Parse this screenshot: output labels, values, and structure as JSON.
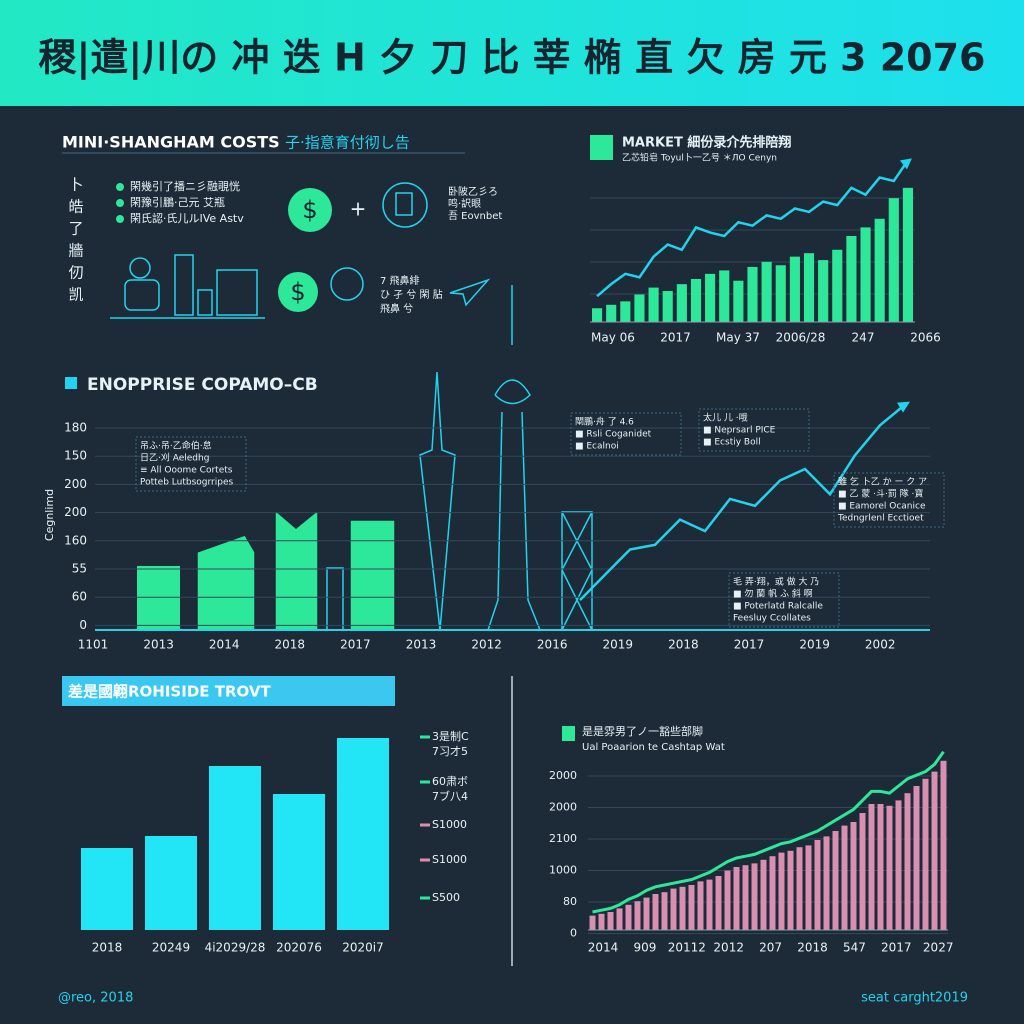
{
  "header": {
    "title": "稷|遣|川の 冲 迭 H 夕 刀 比 莘 椭 直 欠 房 元 3 2076"
  },
  "costs": {
    "heading": "MINI·SHANGHAM COSTS",
    "subtitle": "子·指意育付彻し告",
    "side": [
      "卜",
      "皓",
      "了",
      "牆",
      "仞",
      "凯"
    ],
    "bullets": [
      "閑幾引了播ニ彡融覗恍",
      "閑豫引鵬·己元 艾瓶",
      "閑氏認·氏儿ルIVe Astv"
    ],
    "icons": [
      "$",
      "$"
    ],
    "plus": "+",
    "note_a": [
      "卧陂乙彡ろ",
      "鸣·訳眼",
      "吾 Eovnbet"
    ],
    "note_b": [
      "7 飛鼻緋",
      "ひ 孑 兮 閑 胋",
      "飛鼻 兮"
    ]
  },
  "market": {
    "heading": "MARKET 細份录介先排陪翔",
    "subtitle": "乙芯铅皂 Toyul卜一乙号 ＊ЛO Cenyn",
    "x_labels": [
      "May 06",
      "2017",
      "May 37",
      "2006/28",
      "247",
      "2066"
    ],
    "bars": [
      8,
      10,
      12,
      16,
      20,
      18,
      22,
      25,
      28,
      30,
      24,
      32,
      35,
      33,
      38,
      40,
      36,
      42,
      50,
      55,
      60,
      72,
      78
    ],
    "line": [
      15,
      22,
      28,
      26,
      38,
      45,
      42,
      55,
      52,
      50,
      58,
      56,
      62,
      60,
      66,
      64,
      70,
      68,
      78,
      74,
      84,
      82,
      94
    ],
    "ylim": [
      0,
      100
    ],
    "bar_color": "#2ee89a",
    "line_color": "#22d3ee"
  },
  "enterprise": {
    "heading": "ENOPPRISE COPAMO–CB",
    "axis_label": "Cegnlimd",
    "y_labels": [
      "180",
      "150",
      "200",
      "200",
      "160",
      "55",
      "60",
      "0"
    ],
    "x_labels": [
      "1101",
      "2013",
      "2014",
      "2018",
      "2017",
      "2013",
      "2012",
      "2016",
      "2019",
      "2018",
      "2017",
      "2019",
      "2002"
    ],
    "trend": [
      13,
      24,
      35,
      37,
      48,
      43,
      57,
      54,
      65,
      70,
      59,
      76,
      89,
      98
    ],
    "ylim": [
      0,
      100
    ],
    "line_color": "#22d3ee",
    "annotations": [
      [
        "吊ふ·吊·乙命伯·怠",
        "日乙·刈 Aeledhg",
        "≡ All Ooome Cortets",
        "Potteb Lutbsogrripes"
      ],
      [
        "閘鵬·舟 了 4.6",
        "■ Rsli Coganidet",
        "■ Ecalnoi"
      ],
      [
        "太儿 儿 ·哦",
        "■ Neprsarl PICE",
        "■ Ecstiy Boll"
      ],
      [
        "雖 乞 卜乙 か ー ク ア",
        "■ 乙 蒙 ·斗·罰 隊 ·寶",
        "■ Eamorel Ocanice",
        "Tedngrlenl Ecctioet"
      ],
      [
        "毛 弄·翔，或 做 大 乃",
        "■ 勿 蘭 帆 ふ 斜 啊",
        "■ Poterlatd Ralcalle",
        "Feesluy Ccollates"
      ]
    ]
  },
  "riverside": {
    "heading": "差是國翺ROHISIDE TROVT",
    "categories": [
      "2018",
      "20249",
      "4i2029/28",
      "202076",
      "2020i7"
    ],
    "values": [
      41,
      47,
      82,
      68,
      96
    ],
    "ylim": [
      0,
      100
    ],
    "color": "#22e6f5",
    "legend": [
      {
        "label": [
          "3是制C",
          "7习才5"
        ],
        "color": "#2ee89a"
      },
      {
        "label": [
          "60肃ボ",
          "7ブ八4"
        ],
        "color": "#2ee89a"
      },
      {
        "label": [
          "S1000"
        ],
        "color": "#d98fb0"
      },
      {
        "label": [
          "S1000"
        ],
        "color": "#d98fb0"
      },
      {
        "label": [
          "S500"
        ],
        "color": "#2ee89a"
      }
    ]
  },
  "population": {
    "heading": "是是雰男了ノ一豁些部脚",
    "subtitle": "Ual Poaarion te Cashtap Wat",
    "y_labels": [
      "2000",
      "2000",
      "2100",
      "1000",
      "80",
      "0"
    ],
    "x_labels": [
      "2014",
      "909",
      "20112",
      "2012",
      "207",
      "2018",
      "547",
      "2017",
      "2027"
    ],
    "bars": [
      8,
      9,
      10,
      12,
      14,
      16,
      18,
      20,
      21,
      23,
      24,
      25,
      27,
      28,
      30,
      33,
      35,
      36,
      37,
      39,
      41,
      43,
      44,
      46,
      47,
      50,
      52,
      55,
      58,
      60,
      65,
      70,
      70,
      69,
      72,
      76,
      80,
      84,
      88,
      94
    ],
    "line": [
      10,
      11,
      12,
      14,
      17,
      19,
      22,
      24,
      25,
      26,
      27,
      28,
      30,
      32,
      35,
      38,
      40,
      41,
      42,
      44,
      46,
      48,
      49,
      51,
      53,
      55,
      58,
      61,
      64,
      67,
      72,
      77,
      77,
      76,
      80,
      84,
      86,
      88,
      92,
      99
    ],
    "ylim": [
      0,
      100
    ],
    "bar_color": "#d98fb0",
    "line_color": "#2ee89a"
  },
  "footer": {
    "left": "@reo, 2018",
    "right": "seat carght2019"
  }
}
